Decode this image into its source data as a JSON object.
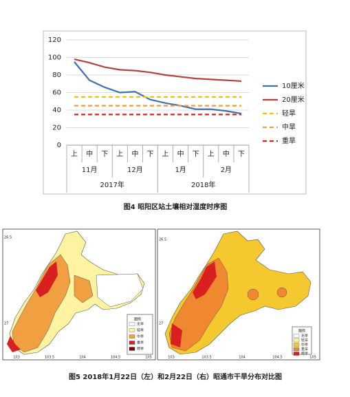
{
  "chart_data": {
    "type": "line",
    "caption": "图4  昭阳区站土壤相对湿度时序图",
    "categories": [
      "上",
      "中",
      "下",
      "上",
      "中",
      "下",
      "上",
      "中",
      "下",
      "上",
      "中",
      "下"
    ],
    "month_labels": [
      "11月",
      "12月",
      "1月",
      "2月"
    ],
    "year_labels": [
      "2017年",
      "2018年"
    ],
    "ylim": [
      0,
      120
    ],
    "yticks": [
      0,
      20,
      40,
      60,
      80,
      100,
      120
    ],
    "grid": true,
    "legend": "right",
    "series": [
      {
        "name": "10厘米",
        "color": "#3f6fb0",
        "dashed": false,
        "values": [
          95,
          74,
          66,
          60,
          61,
          52,
          48,
          45,
          41,
          41,
          39,
          36
        ]
      },
      {
        "name": "20厘米",
        "color": "#b5413c",
        "dashed": false,
        "values": [
          98,
          94,
          89,
          86,
          85,
          83,
          80,
          78,
          76,
          75,
          74,
          73
        ]
      },
      {
        "name": "轻旱",
        "color": "#f5c400",
        "dashed": true,
        "values": [
          55,
          55,
          55,
          55,
          55,
          55,
          55,
          55,
          55,
          55,
          55,
          55
        ]
      },
      {
        "name": "中旱",
        "color": "#f29b3c",
        "dashed": true,
        "values": [
          45,
          45,
          45,
          45,
          45,
          45,
          45,
          45,
          45,
          45,
          45,
          45
        ]
      },
      {
        "name": "重旱",
        "color": "#e0201b",
        "dashed": true,
        "values": [
          35,
          35,
          35,
          35,
          35,
          35,
          35,
          35,
          35,
          35,
          35,
          35
        ]
      }
    ]
  },
  "maps": [
    {
      "lat_labels": [
        "26.5",
        "27"
      ],
      "lon_labels": [
        "103",
        "103.5",
        "104",
        "104.5",
        "105"
      ],
      "legend_title": "图例",
      "legend": [
        "无旱",
        "轻旱",
        "中旱",
        "重旱",
        "特旱"
      ]
    },
    {
      "lat_labels": [
        "26.5",
        "27"
      ],
      "lon_labels": [
        "103",
        "103.5",
        "104",
        "104.5",
        "105"
      ],
      "legend_title": "图例",
      "legend": [
        "无旱",
        "轻旱",
        "中旱",
        "重旱",
        "特旱"
      ]
    }
  ],
  "map_caption": "图5 2018年1月22日（左）和2月22日（右）昭通市干旱分布对比图"
}
